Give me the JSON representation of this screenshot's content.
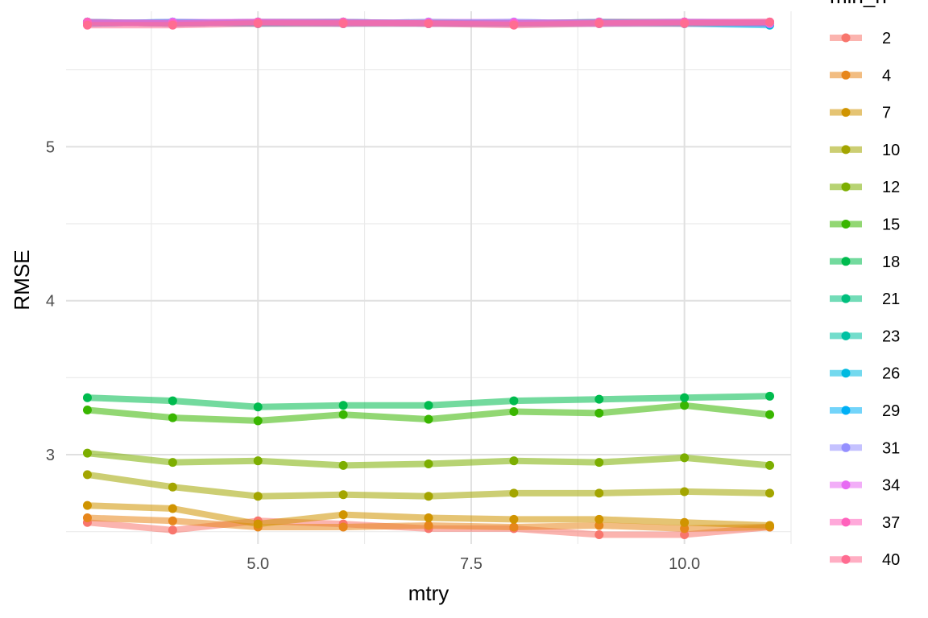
{
  "chart_data": {
    "type": "line",
    "xlabel": "mtry",
    "ylabel": "RMSE",
    "legend_title": "min_n",
    "legend_position": "right",
    "grid": true,
    "xlim": [
      2.75,
      11.25
    ],
    "ylim": [
      2.42,
      5.88
    ],
    "x_ticks": [
      5.0,
      7.5,
      10.0
    ],
    "x_tick_labels": [
      "5.0",
      "7.5",
      "10.0"
    ],
    "y_ticks": [
      3,
      4,
      5
    ],
    "y_tick_labels": [
      "3",
      "4",
      "5"
    ],
    "x": [
      3,
      4,
      5,
      6,
      7,
      8,
      9,
      10,
      11
    ],
    "series": [
      {
        "name": "2",
        "color": "#F8766D",
        "values": [
          2.56,
          2.51,
          2.57,
          2.55,
          2.52,
          2.52,
          2.48,
          2.48,
          2.53
        ]
      },
      {
        "name": "4",
        "color": "#E7861B",
        "values": [
          2.59,
          2.57,
          2.53,
          2.53,
          2.54,
          2.53,
          2.54,
          2.52,
          2.53
        ]
      },
      {
        "name": "7",
        "color": "#D09400",
        "values": [
          2.67,
          2.65,
          2.55,
          2.61,
          2.59,
          2.58,
          2.58,
          2.56,
          2.54
        ]
      },
      {
        "name": "10",
        "color": "#A3A500",
        "values": [
          2.87,
          2.79,
          2.73,
          2.74,
          2.73,
          2.75,
          2.75,
          2.76,
          2.75
        ]
      },
      {
        "name": "12",
        "color": "#7CAE00",
        "values": [
          3.01,
          2.95,
          2.96,
          2.93,
          2.94,
          2.96,
          2.95,
          2.98,
          2.93
        ]
      },
      {
        "name": "15",
        "color": "#39B600",
        "values": [
          3.29,
          3.24,
          3.22,
          3.26,
          3.23,
          3.28,
          3.27,
          3.32,
          3.26
        ]
      },
      {
        "name": "18",
        "color": "#00BB4E",
        "values": [
          3.37,
          3.35,
          3.31,
          3.32,
          3.32,
          3.35,
          3.36,
          3.37,
          3.38
        ]
      },
      {
        "name": "21",
        "color": "#00BF7D",
        "values": [
          5.81,
          5.8,
          5.81,
          5.81,
          5.8,
          5.8,
          5.81,
          5.81,
          5.8
        ]
      },
      {
        "name": "23",
        "color": "#00C1A3",
        "values": [
          5.8,
          5.81,
          5.8,
          5.8,
          5.81,
          5.8,
          5.8,
          5.81,
          5.8
        ]
      },
      {
        "name": "26",
        "color": "#00BAE0",
        "values": [
          5.81,
          5.8,
          5.81,
          5.8,
          5.8,
          5.81,
          5.8,
          5.8,
          5.79
        ]
      },
      {
        "name": "29",
        "color": "#00B0F6",
        "values": [
          5.8,
          5.81,
          5.8,
          5.81,
          5.8,
          5.8,
          5.81,
          5.8,
          5.8
        ]
      },
      {
        "name": "31",
        "color": "#9590FF",
        "values": [
          5.81,
          5.8,
          5.81,
          5.81,
          5.8,
          5.8,
          5.8,
          5.81,
          5.81
        ]
      },
      {
        "name": "34",
        "color": "#E76BF3",
        "values": [
          5.8,
          5.81,
          5.81,
          5.8,
          5.81,
          5.81,
          5.8,
          5.81,
          5.8
        ]
      },
      {
        "name": "37",
        "color": "#FF62BC",
        "values": [
          5.81,
          5.8,
          5.81,
          5.81,
          5.8,
          5.8,
          5.81,
          5.81,
          5.81
        ]
      },
      {
        "name": "40",
        "color": "#FF6C91",
        "values": [
          5.79,
          5.79,
          5.8,
          5.8,
          5.8,
          5.79,
          5.8,
          5.8,
          5.81
        ]
      }
    ]
  }
}
